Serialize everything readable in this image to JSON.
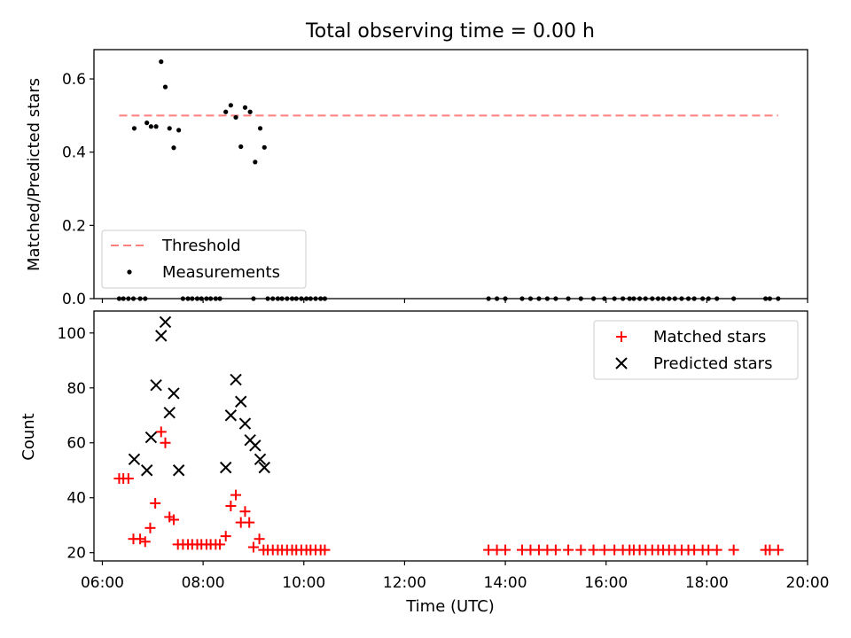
{
  "figure": {
    "title": "Total observing time = 0.00 h"
  },
  "chart_data": [
    {
      "type": "scatter",
      "panel": "top",
      "title": "Total observing time = 0.00 h",
      "xlabel": "",
      "ylabel": "Matched/Predicted stars",
      "xlim": [
        "05:50",
        "20:00"
      ],
      "ylim": [
        0,
        0.68
      ],
      "yticks": [
        0.0,
        0.2,
        0.4,
        0.6
      ],
      "ytick_labels": [
        "0.0",
        "0.2",
        "0.4",
        "0.6"
      ],
      "legend_position": "lower-left",
      "threshold": {
        "name": "Threshold",
        "y": 0.5,
        "x_start": "06:20",
        "x_end": "19:25",
        "color": "#ff7f7f",
        "style": "dashed"
      },
      "series": [
        {
          "name": "Measurements",
          "marker": "dot",
          "color": "#000000",
          "points": [
            [
              "06:38",
              0.465
            ],
            [
              "06:53",
              0.48
            ],
            [
              "06:58",
              0.47
            ],
            [
              "07:04",
              0.47
            ],
            [
              "07:10",
              0.647
            ],
            [
              "07:15",
              0.578
            ],
            [
              "07:20",
              0.465
            ],
            [
              "07:25",
              0.412
            ],
            [
              "07:31",
              0.46
            ],
            [
              "08:27",
              0.51
            ],
            [
              "08:33",
              0.528
            ],
            [
              "08:39",
              0.495
            ],
            [
              "08:45",
              0.415
            ],
            [
              "08:50",
              0.522
            ],
            [
              "08:56",
              0.51
            ],
            [
              "09:02",
              0.373
            ],
            [
              "09:08",
              0.465
            ],
            [
              "09:13",
              0.413
            ],
            [
              "06:20",
              0
            ],
            [
              "06:25",
              0
            ],
            [
              "06:31",
              0
            ],
            [
              "06:37",
              0
            ],
            [
              "06:45",
              0
            ],
            [
              "06:51",
              0
            ],
            [
              "07:36",
              0
            ],
            [
              "07:42",
              0
            ],
            [
              "07:47",
              0
            ],
            [
              "07:53",
              0
            ],
            [
              "07:58",
              0
            ],
            [
              "08:04",
              0
            ],
            [
              "08:09",
              0
            ],
            [
              "08:15",
              0
            ],
            [
              "08:20",
              0
            ],
            [
              "09:00",
              0
            ],
            [
              "09:17",
              0
            ],
            [
              "09:23",
              0
            ],
            [
              "09:29",
              0
            ],
            [
              "09:34",
              0
            ],
            [
              "09:40",
              0
            ],
            [
              "09:46",
              0
            ],
            [
              "09:51",
              0
            ],
            [
              "09:57",
              0
            ],
            [
              "10:03",
              0
            ],
            [
              "10:08",
              0
            ],
            [
              "10:14",
              0
            ],
            [
              "10:20",
              0
            ],
            [
              "10:25",
              0
            ],
            [
              "13:40",
              0
            ],
            [
              "13:50",
              0
            ],
            [
              "14:00",
              0
            ],
            [
              "14:20",
              0
            ],
            [
              "14:30",
              0
            ],
            [
              "14:40",
              0
            ],
            [
              "14:50",
              0
            ],
            [
              "15:00",
              0
            ],
            [
              "15:15",
              0
            ],
            [
              "15:30",
              0
            ],
            [
              "15:45",
              0
            ],
            [
              "15:58",
              0
            ],
            [
              "16:10",
              0
            ],
            [
              "16:20",
              0
            ],
            [
              "16:28",
              0
            ],
            [
              "16:33",
              0
            ],
            [
              "16:40",
              0
            ],
            [
              "16:47",
              0
            ],
            [
              "16:55",
              0
            ],
            [
              "17:02",
              0
            ],
            [
              "17:08",
              0
            ],
            [
              "17:15",
              0
            ],
            [
              "17:22",
              0
            ],
            [
              "17:30",
              0
            ],
            [
              "17:38",
              0
            ],
            [
              "17:45",
              0
            ],
            [
              "17:55",
              0
            ],
            [
              "18:02",
              0
            ],
            [
              "18:12",
              0
            ],
            [
              "18:32",
              0
            ],
            [
              "19:10",
              0
            ],
            [
              "19:15",
              0
            ],
            [
              "19:25",
              0
            ]
          ]
        }
      ]
    },
    {
      "type": "scatter",
      "panel": "bottom",
      "xlabel": "Time (UTC)",
      "ylabel": "Count",
      "xlim": [
        "05:50",
        "20:00"
      ],
      "ylim": [
        17,
        108
      ],
      "xticks": [
        "06:00",
        "08:00",
        "10:00",
        "12:00",
        "14:00",
        "16:00",
        "18:00",
        "20:00"
      ],
      "yticks": [
        20,
        40,
        60,
        80,
        100
      ],
      "ytick_labels": [
        "20",
        "40",
        "60",
        "80",
        "100"
      ],
      "legend_position": "upper-right",
      "series": [
        {
          "name": "Matched stars",
          "marker": "plus",
          "color": "#ff0000",
          "points": [
            [
              "06:20",
              47
            ],
            [
              "06:25",
              47
            ],
            [
              "06:31",
              47
            ],
            [
              "06:37",
              25
            ],
            [
              "06:45",
              25
            ],
            [
              "06:51",
              24
            ],
            [
              "06:57",
              29
            ],
            [
              "07:03",
              38
            ],
            [
              "07:10",
              64
            ],
            [
              "07:15",
              60
            ],
            [
              "07:20",
              33
            ],
            [
              "07:25",
              32
            ],
            [
              "07:30",
              23
            ],
            [
              "07:36",
              23
            ],
            [
              "07:42",
              23
            ],
            [
              "07:47",
              23
            ],
            [
              "07:53",
              23
            ],
            [
              "07:58",
              23
            ],
            [
              "08:04",
              23
            ],
            [
              "08:09",
              23
            ],
            [
              "08:15",
              23
            ],
            [
              "08:20",
              23
            ],
            [
              "08:27",
              26
            ],
            [
              "08:33",
              37
            ],
            [
              "08:39",
              41
            ],
            [
              "08:45",
              31
            ],
            [
              "08:50",
              35
            ],
            [
              "08:55",
              31
            ],
            [
              "09:00",
              22
            ],
            [
              "09:07",
              25
            ],
            [
              "09:12",
              21
            ],
            [
              "09:17",
              21
            ],
            [
              "09:23",
              21
            ],
            [
              "09:29",
              21
            ],
            [
              "09:34",
              21
            ],
            [
              "09:40",
              21
            ],
            [
              "09:46",
              21
            ],
            [
              "09:51",
              21
            ],
            [
              "09:57",
              21
            ],
            [
              "10:03",
              21
            ],
            [
              "10:08",
              21
            ],
            [
              "10:14",
              21
            ],
            [
              "10:20",
              21
            ],
            [
              "10:25",
              21
            ],
            [
              "13:40",
              21
            ],
            [
              "13:50",
              21
            ],
            [
              "14:00",
              21
            ],
            [
              "14:20",
              21
            ],
            [
              "14:30",
              21
            ],
            [
              "14:40",
              21
            ],
            [
              "14:50",
              21
            ],
            [
              "15:00",
              21
            ],
            [
              "15:15",
              21
            ],
            [
              "15:30",
              21
            ],
            [
              "15:45",
              21
            ],
            [
              "15:58",
              21
            ],
            [
              "16:10",
              21
            ],
            [
              "16:20",
              21
            ],
            [
              "16:28",
              21
            ],
            [
              "16:33",
              21
            ],
            [
              "16:40",
              21
            ],
            [
              "16:47",
              21
            ],
            [
              "16:55",
              21
            ],
            [
              "17:02",
              21
            ],
            [
              "17:08",
              21
            ],
            [
              "17:15",
              21
            ],
            [
              "17:22",
              21
            ],
            [
              "17:30",
              21
            ],
            [
              "17:38",
              21
            ],
            [
              "17:45",
              21
            ],
            [
              "17:55",
              21
            ],
            [
              "18:02",
              21
            ],
            [
              "18:12",
              21
            ],
            [
              "18:32",
              21
            ],
            [
              "19:10",
              21
            ],
            [
              "19:15",
              21
            ],
            [
              "19:25",
              21
            ]
          ]
        },
        {
          "name": "Predicted stars",
          "marker": "x",
          "color": "#000000",
          "points": [
            [
              "06:38",
              54
            ],
            [
              "06:53",
              50
            ],
            [
              "06:58",
              62
            ],
            [
              "07:04",
              81
            ],
            [
              "07:10",
              99
            ],
            [
              "07:15",
              104
            ],
            [
              "07:20",
              71
            ],
            [
              "07:25",
              78
            ],
            [
              "07:31",
              50
            ],
            [
              "08:27",
              51
            ],
            [
              "08:33",
              70
            ],
            [
              "08:39",
              83
            ],
            [
              "08:45",
              75
            ],
            [
              "08:50",
              67
            ],
            [
              "08:56",
              61
            ],
            [
              "09:02",
              59
            ],
            [
              "09:08",
              54
            ],
            [
              "09:13",
              51
            ]
          ]
        }
      ]
    }
  ]
}
